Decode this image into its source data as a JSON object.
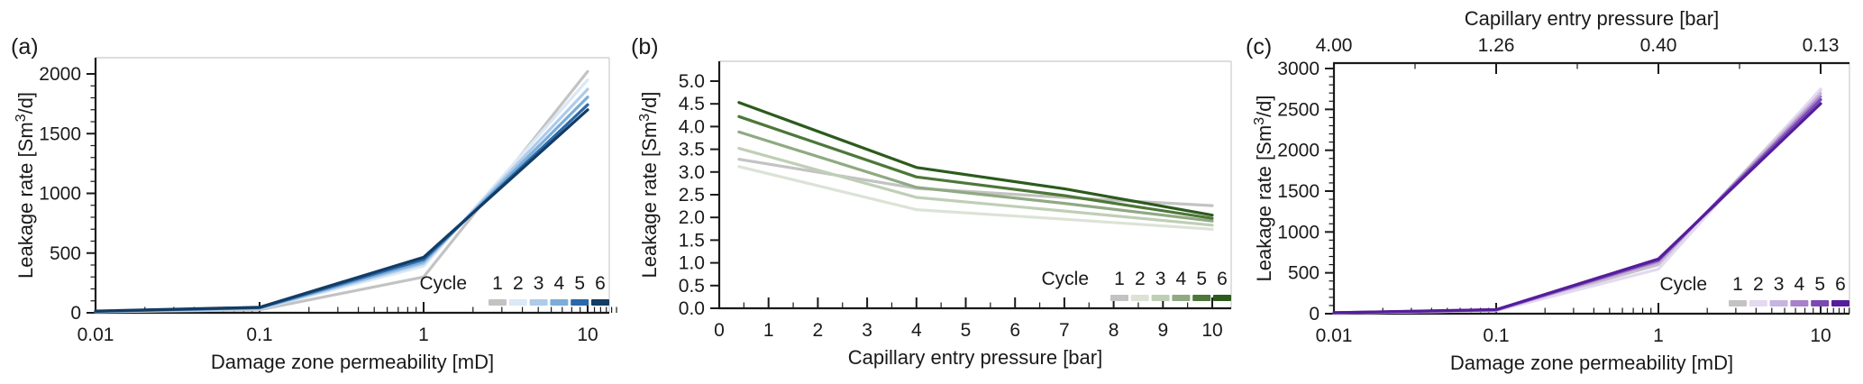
{
  "figure": {
    "background": "#ffffff",
    "axis_color": "#1a1a1a",
    "light_spine_color": "#d2d2d2",
    "panels": [
      {
        "letter": "(a)"
      },
      {
        "letter": "(b)"
      },
      {
        "letter": "(c)"
      }
    ]
  },
  "chart_data": [
    {
      "panel": "a",
      "type": "line",
      "title": "",
      "xlabel": "Damage zone permeability [mD]",
      "ylabel": "Leakage rate [Sm3/d]",
      "ylabel_parts": [
        "Leakage rate [Sm",
        "3",
        "/d]"
      ],
      "x_scale": "log",
      "xlim": [
        0.01,
        15
      ],
      "ylim": [
        0,
        2140
      ],
      "x_tick_values": [
        0.01,
        0.1,
        1,
        10
      ],
      "x_tick_labels": [
        "0.01",
        "0.1",
        "1",
        "10"
      ],
      "y_tick_values": [
        0,
        500,
        1000,
        1500,
        2000
      ],
      "y_tick_labels": [
        "0",
        "500",
        "1000",
        "1500",
        "2000"
      ],
      "y_minor_step": 100,
      "grid": false,
      "legend": {
        "label": "Cycle",
        "entries": [
          "1",
          "2",
          "3",
          "4",
          "5",
          "6"
        ],
        "position": "lower right"
      },
      "x": [
        0.01,
        0.1,
        1,
        10
      ],
      "series": [
        {
          "name": "Cycle 1",
          "color": "#c3c3c3",
          "values": [
            8,
            25,
            300,
            2020
          ]
        },
        {
          "name": "Cycle 2",
          "color": "#dbe8f5",
          "values": [
            10,
            33,
            390,
            1950
          ]
        },
        {
          "name": "Cycle 3",
          "color": "#aecbe8",
          "values": [
            11,
            36,
            412,
            1872
          ]
        },
        {
          "name": "Cycle 4",
          "color": "#7badd8",
          "values": [
            12,
            40,
            428,
            1806
          ]
        },
        {
          "name": "Cycle 5",
          "color": "#2a68ab",
          "values": [
            13,
            43,
            447,
            1742
          ]
        },
        {
          "name": "Cycle 6",
          "color": "#133c64",
          "values": [
            14,
            46,
            465,
            1700
          ]
        }
      ]
    },
    {
      "panel": "b",
      "type": "line",
      "title": "",
      "xlabel": "Capillary entry pressure [bar]",
      "ylabel": "Leakage rate [Sm3/d]",
      "ylabel_parts": [
        "Leakage rate [Sm",
        "3",
        "/d]"
      ],
      "x_scale": "linear",
      "xlim": [
        0,
        10.35
      ],
      "ylim": [
        0,
        5.35
      ],
      "x_tick_values": [
        0,
        1,
        2,
        3,
        4,
        5,
        6,
        7,
        8,
        9,
        10
      ],
      "x_tick_labels": [
        "0",
        "1",
        "2",
        "3",
        "4",
        "5",
        "6",
        "7",
        "8",
        "9",
        "10"
      ],
      "x_minor_step": 0.5,
      "y_tick_values": [
        0,
        0.5,
        1,
        1.5,
        2,
        2.5,
        3,
        3.5,
        4,
        4.5,
        5
      ],
      "y_tick_labels": [
        "0.0",
        "0.5",
        "1.0",
        "1.5",
        "2.0",
        "2.5",
        "3.0",
        "3.5",
        "4.0",
        "4.5",
        "5.0"
      ],
      "grid": false,
      "legend": {
        "label": "Cycle",
        "entries": [
          "1",
          "2",
          "3",
          "4",
          "5",
          "6"
        ],
        "position": "lower right"
      },
      "x": [
        0.4,
        4,
        7,
        10
      ],
      "series": [
        {
          "name": "Cycle 1",
          "color": "#c3c3c3",
          "values": [
            3.28,
            2.64,
            2.44,
            2.26
          ]
        },
        {
          "name": "Cycle 2",
          "color": "#dce3d6",
          "values": [
            3.12,
            2.17,
            1.96,
            1.74
          ]
        },
        {
          "name": "Cycle 3",
          "color": "#bfcfb6",
          "values": [
            3.52,
            2.44,
            2.14,
            1.83
          ]
        },
        {
          "name": "Cycle 4",
          "color": "#90a983",
          "values": [
            3.88,
            2.66,
            2.31,
            1.92
          ]
        },
        {
          "name": "Cycle 5",
          "color": "#4d7739",
          "values": [
            4.22,
            2.89,
            2.48,
            1.98
          ]
        },
        {
          "name": "Cycle 6",
          "color": "#2c5b1c",
          "values": [
            4.53,
            3.1,
            2.63,
            2.05
          ]
        }
      ]
    },
    {
      "panel": "c",
      "type": "line",
      "title": "",
      "xlabel": "Damage zone permeability [mD]",
      "ylabel": "Leakage rate [Sm3/d]",
      "ylabel_parts": [
        "Leakage rate [Sm",
        "3",
        "/d]"
      ],
      "x_scale": "log",
      "xlim": [
        0.01,
        15
      ],
      "ylim": [
        0,
        3060
      ],
      "x_tick_values": [
        0.01,
        0.1,
        1,
        10
      ],
      "x_tick_labels": [
        "0.01",
        "0.1",
        "1",
        "10"
      ],
      "y_tick_values": [
        0,
        500,
        1000,
        1500,
        2000,
        2500,
        3000
      ],
      "y_tick_labels": [
        "0",
        "500",
        "1000",
        "1500",
        "2000",
        "2500",
        "3000"
      ],
      "y_minor_step": 100,
      "grid": false,
      "top_axis": {
        "title": "Capillary entry pressure [bar]",
        "tick_values": [
          0.01,
          0.1,
          1,
          10
        ],
        "tick_labels": [
          "4.00",
          "1.26",
          "0.40",
          "0.13"
        ]
      },
      "legend": {
        "label": "Cycle",
        "entries": [
          "1",
          "2",
          "3",
          "4",
          "5",
          "6"
        ],
        "position": "lower right"
      },
      "x": [
        0.01,
        0.1,
        1,
        10
      ],
      "series": [
        {
          "name": "Cycle 1",
          "color": "#c3c3c3",
          "values": [
            8,
            38,
            600,
            2740
          ]
        },
        {
          "name": "Cycle 2",
          "color": "#e3d9f0",
          "values": [
            8,
            36,
            545,
            2750
          ]
        },
        {
          "name": "Cycle 3",
          "color": "#c9b3df",
          "values": [
            9,
            42,
            625,
            2695
          ]
        },
        {
          "name": "Cycle 4",
          "color": "#a483ca",
          "values": [
            10,
            45,
            642,
            2655
          ]
        },
        {
          "name": "Cycle 5",
          "color": "#7a4ab1",
          "values": [
            11,
            48,
            656,
            2618
          ]
        },
        {
          "name": "Cycle 6",
          "color": "#551d9c",
          "values": [
            12,
            50,
            670,
            2570
          ]
        }
      ]
    }
  ]
}
